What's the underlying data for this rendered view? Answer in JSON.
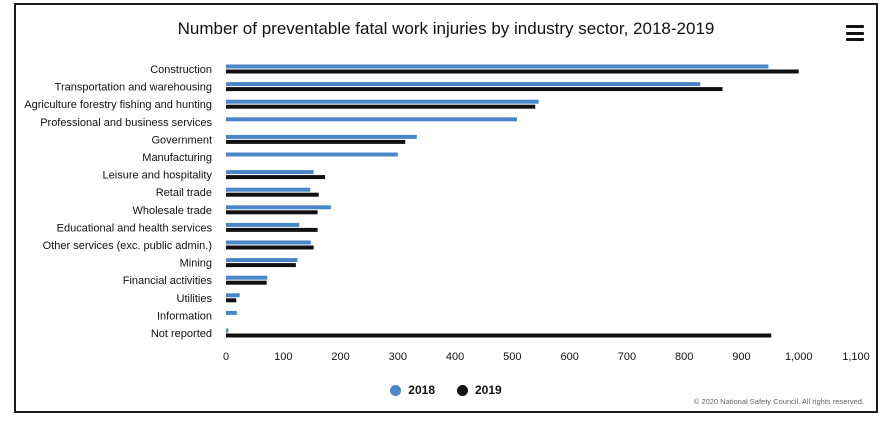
{
  "chart_data": {
    "type": "bar",
    "orientation": "horizontal",
    "title": "Number of preventable fatal work injuries by industry sector, 2018-2019",
    "xlabel": "",
    "ylabel": "",
    "xlim": [
      0,
      1100
    ],
    "ticks": [
      {
        "value": 0,
        "label": "0"
      },
      {
        "value": 100,
        "label": "100"
      },
      {
        "value": 200,
        "label": "200"
      },
      {
        "value": 300,
        "label": "300"
      },
      {
        "value": 400,
        "label": "400"
      },
      {
        "value": 500,
        "label": "500"
      },
      {
        "value": 600,
        "label": "600"
      },
      {
        "value": 700,
        "label": "700"
      },
      {
        "value": 800,
        "label": "800"
      },
      {
        "value": 900,
        "label": "900"
      },
      {
        "value": 1000,
        "label": "1,000"
      },
      {
        "value": 1100,
        "label": "1,100"
      }
    ],
    "grid": false,
    "legend_position": "bottom-center",
    "categories": [
      "Construction",
      "Transportation and warehousing",
      "Agriculture forestry fishing and hunting",
      "Professional and business services",
      "Government",
      "Manufacturing",
      "Leisure and hospitality",
      "Retail trade",
      "Wholesale trade",
      "Educational and health services",
      "Other services (exc. public admin.)",
      "Mining",
      "Financial activities",
      "Utilities",
      "Information",
      "Not reported"
    ],
    "series": [
      {
        "name": "2018",
        "color": "#4a86c8",
        "values": [
          947,
          828,
          546,
          508,
          333,
          300,
          153,
          147,
          183,
          128,
          148,
          125,
          72,
          24,
          19,
          4
        ]
      },
      {
        "name": "2019",
        "color": "#111111",
        "values": [
          1000,
          867,
          540,
          null,
          313,
          null,
          173,
          162,
          160,
          160,
          153,
          122,
          71,
          18,
          null,
          952
        ]
      }
    ]
  },
  "menu_icon": "hamburger-menu-icon",
  "credit": "© 2020 National Safety Council. All rights reserved."
}
